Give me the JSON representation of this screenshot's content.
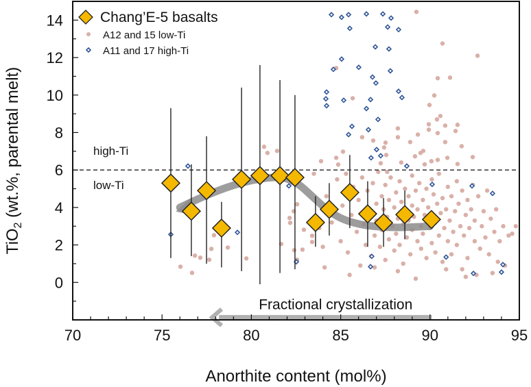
{
  "chart_data": {
    "type": "scatter",
    "xlabel": "Anorthite content (mol%)",
    "ylabel_main": "TiO",
    "ylabel_sub": "2",
    "ylabel_rest": " (wt.%, parental melt)",
    "xlim": [
      70,
      95
    ],
    "ylim": [
      -2,
      15
    ],
    "xticks": [
      "70",
      "75",
      "80",
      "85",
      "90",
      "95"
    ],
    "yticks": [
      "0",
      "2",
      "4",
      "6",
      "8",
      "10",
      "12",
      "14"
    ],
    "grid": false,
    "legend_position": "top-left",
    "threshold_line": {
      "y": 6,
      "style": "dashed",
      "label_above": "high-Ti",
      "label_below": "low-Ti"
    },
    "annotation": {
      "text": "Fractional crystallization",
      "arrow_from_x": 90.1,
      "arrow_to_x": 77.8,
      "arrow_y": -1.5,
      "color": "#b0b0b0"
    },
    "trend_curve": {
      "color": "#8c8c8c",
      "points": [
        [
          76.0,
          4.0
        ],
        [
          77.0,
          4.45
        ],
        [
          78.0,
          4.85
        ],
        [
          79.0,
          5.2
        ],
        [
          80.0,
          5.45
        ],
        [
          81.0,
          5.6
        ],
        [
          81.8,
          5.62
        ],
        [
          82.6,
          5.3
        ],
        [
          83.4,
          4.6
        ],
        [
          84.2,
          3.9
        ],
        [
          85.0,
          3.4
        ],
        [
          86.0,
          3.1
        ],
        [
          87.0,
          2.97
        ],
        [
          88.0,
          2.93
        ],
        [
          89.0,
          2.95
        ],
        [
          90.0,
          3.0
        ]
      ]
    },
    "series": [
      {
        "name": "Chang’E-5 basalts",
        "marker": "diamond",
        "color": "#f5b800",
        "points": [
          {
            "x": 75.49,
            "y": 5.3,
            "ymin": 1.3,
            "ymax": 9.3
          },
          {
            "x": 76.64,
            "y": 3.8,
            "ymin": 1.4,
            "ymax": 6.3
          },
          {
            "x": 77.49,
            "y": 4.9,
            "ymin": 1.0,
            "ymax": 7.8
          },
          {
            "x": 78.33,
            "y": 2.9,
            "ymin": 0.8,
            "ymax": 4.3
          },
          {
            "x": 79.45,
            "y": 5.5,
            "ymin": 0.6,
            "ymax": 10.4
          },
          {
            "x": 80.48,
            "y": 5.7,
            "ymin": -0.1,
            "ymax": 11.6
          },
          {
            "x": 81.6,
            "y": 5.7,
            "ymin": 0.5,
            "ymax": 10.8
          },
          {
            "x": 82.44,
            "y": 5.6,
            "ymin": 0.7,
            "ymax": 10.0
          },
          {
            "x": 83.59,
            "y": 3.2,
            "ymin": 1.9,
            "ymax": 4.6
          },
          {
            "x": 84.36,
            "y": 3.9,
            "ymin": 2.5,
            "ymax": 5.3
          },
          {
            "x": 85.51,
            "y": 4.8,
            "ymin": 2.9,
            "ymax": 6.8
          },
          {
            "x": 86.51,
            "y": 3.66,
            "ymin": 1.9,
            "ymax": 5.4
          },
          {
            "x": 87.4,
            "y": 3.18,
            "ymin": 1.9,
            "ymax": 4.5
          },
          {
            "x": 88.59,
            "y": 3.62,
            "ymin": 2.3,
            "ymax": 4.9
          },
          {
            "x": 90.08,
            "y": 3.36
          }
        ]
      },
      {
        "name": "A12 and 15 low-Ti",
        "marker": "circle",
        "color": "#d9b0a8",
        "points": [
          [
            89.24,
            14.44
          ],
          [
            90.7,
            12.75
          ],
          [
            92.66,
            12.1
          ],
          [
            90.43,
            10.9
          ],
          [
            91.12,
            10.93
          ],
          [
            90.24,
            9.98
          ],
          [
            89.97,
            9.47
          ],
          [
            84.75,
            11.44
          ],
          [
            85.67,
            9.83
          ],
          [
            90.58,
            8.88
          ],
          [
            90.39,
            8.7
          ],
          [
            89.93,
            8.44
          ],
          [
            89.93,
            8.15
          ],
          [
            90.85,
            8.37
          ],
          [
            91.54,
            8.41
          ],
          [
            90.43,
            7.97
          ],
          [
            91.43,
            8.08
          ],
          [
            89.32,
            7.89
          ],
          [
            88.2,
            8.22
          ],
          [
            88.2,
            7.75
          ],
          [
            86.2,
            7.75
          ],
          [
            86.82,
            7.57
          ],
          [
            87.51,
            7.46
          ],
          [
            88.89,
            7.49
          ],
          [
            90.85,
            7.49
          ],
          [
            91.77,
            7.27
          ],
          [
            87.43,
            7.2
          ],
          [
            85.13,
            6.98
          ],
          [
            89.62,
            7.02
          ],
          [
            89.47,
            6.91
          ],
          [
            84.75,
            6.65
          ],
          [
            83.9,
            6.47
          ],
          [
            89.16,
            6.73
          ],
          [
            90.97,
            6.65
          ],
          [
            92.39,
            6.69
          ],
          [
            90.08,
            6.47
          ],
          [
            90.43,
            6.54
          ],
          [
            91.54,
            6.32
          ],
          [
            84.86,
            6.29
          ],
          [
            87.24,
            6.36
          ],
          [
            88.39,
            6.4
          ],
          [
            87.55,
            6.8
          ],
          [
            80.71,
            7.24
          ],
          [
            80.9,
            6.91
          ],
          [
            81.44,
            7.02
          ],
          [
            82.56,
            4.17
          ],
          [
            82.37,
            3.8
          ],
          [
            82.14,
            3.44
          ],
          [
            82.17,
            3.18
          ],
          [
            82.94,
            2.81
          ],
          [
            83.4,
            2.49
          ],
          [
            83.4,
            2.16
          ],
          [
            81.67,
            2.05
          ],
          [
            82.4,
            1.72
          ],
          [
            82.86,
            1.75
          ],
          [
            82.56,
            1.21
          ],
          [
            77.91,
            2.52
          ],
          [
            78.68,
            1.86
          ],
          [
            77.76,
            1.79
          ],
          [
            79.72,
            1.28
          ],
          [
            76.84,
            1.43
          ],
          [
            77.14,
            1.32
          ],
          [
            77.64,
            1.21
          ],
          [
            76.03,
            0.84
          ],
          [
            76.68,
            0.51
          ],
          [
            84.2,
            4.6
          ],
          [
            84.5,
            3.2
          ],
          [
            84.8,
            5.5
          ],
          [
            85.0,
            2.2
          ],
          [
            85.1,
            4.1
          ],
          [
            85.3,
            5.8
          ],
          [
            85.4,
            1.6
          ],
          [
            85.6,
            3.6
          ],
          [
            85.7,
            5.1
          ],
          [
            85.9,
            2.7
          ],
          [
            86.0,
            4.4
          ],
          [
            86.1,
            0.9
          ],
          [
            86.2,
            5.6
          ],
          [
            86.3,
            3.1
          ],
          [
            86.4,
            2.0
          ],
          [
            86.5,
            4.9
          ],
          [
            86.6,
            3.8
          ],
          [
            86.7,
            1.4
          ],
          [
            86.8,
            5.3
          ],
          [
            86.9,
            2.5
          ],
          [
            87.0,
            4.2
          ],
          [
            87.0,
            3.3
          ],
          [
            87.1,
            5.9
          ],
          [
            87.2,
            1.9
          ],
          [
            87.3,
            4.6
          ],
          [
            87.3,
            2.8
          ],
          [
            87.4,
            3.9
          ],
          [
            87.5,
            5.2
          ],
          [
            87.5,
            1.2
          ],
          [
            87.6,
            3.5
          ],
          [
            87.7,
            4.4
          ],
          [
            87.7,
            2.3
          ],
          [
            87.8,
            5.6
          ],
          [
            87.9,
            3.0
          ],
          [
            88.0,
            4.0
          ],
          [
            88.0,
            1.7
          ],
          [
            88.1,
            4.8
          ],
          [
            88.1,
            2.6
          ],
          [
            88.2,
            3.4
          ],
          [
            88.3,
            5.4
          ],
          [
            88.3,
            2.0
          ],
          [
            88.4,
            4.3
          ],
          [
            88.5,
            3.1
          ],
          [
            88.5,
            1.0
          ],
          [
            88.6,
            5.0
          ],
          [
            88.6,
            3.7
          ],
          [
            88.7,
            2.4
          ],
          [
            88.8,
            4.6
          ],
          [
            88.8,
            3.3
          ],
          [
            88.9,
            1.5
          ],
          [
            89.0,
            5.7
          ],
          [
            89.0,
            4.1
          ],
          [
            89.0,
            2.8
          ],
          [
            89.1,
            3.5
          ],
          [
            89.2,
            0.2
          ],
          [
            89.2,
            4.9
          ],
          [
            89.3,
            2.2
          ],
          [
            89.3,
            3.9
          ],
          [
            89.4,
            5.3
          ],
          [
            89.5,
            3.0
          ],
          [
            89.5,
            1.8
          ],
          [
            89.6,
            4.4
          ],
          [
            89.6,
            2.6
          ],
          [
            89.7,
            3.6
          ],
          [
            89.8,
            5.0
          ],
          [
            89.8,
            1.3
          ],
          [
            89.9,
            4.0
          ],
          [
            90.0,
            2.9
          ],
          [
            90.0,
            3.4
          ],
          [
            90.1,
            5.5
          ],
          [
            90.1,
            2.1
          ],
          [
            90.2,
            4.7
          ],
          [
            90.3,
            3.2
          ],
          [
            90.3,
            1.6
          ],
          [
            90.4,
            4.2
          ],
          [
            90.5,
            2.5
          ],
          [
            90.5,
            5.8
          ],
          [
            90.6,
            3.7
          ],
          [
            90.7,
            1.1
          ],
          [
            90.7,
            4.5
          ],
          [
            90.8,
            2.9
          ],
          [
            90.9,
            3.9
          ],
          [
            91.0,
            5.1
          ],
          [
            91.0,
            2.2
          ],
          [
            91.1,
            3.3
          ],
          [
            91.2,
            4.6
          ],
          [
            91.2,
            1.5
          ],
          [
            91.3,
            2.7
          ],
          [
            91.4,
            3.8
          ],
          [
            91.5,
            5.4
          ],
          [
            91.5,
            2.0
          ],
          [
            91.6,
            4.2
          ],
          [
            91.7,
            3.0
          ],
          [
            91.8,
            0.7
          ],
          [
            91.8,
            4.9
          ],
          [
            91.9,
            2.5
          ],
          [
            92.0,
            3.6
          ],
          [
            92.1,
            1.3
          ],
          [
            92.1,
            4.4
          ],
          [
            92.2,
            2.9
          ],
          [
            92.3,
            3.9
          ],
          [
            92.4,
            5.2
          ],
          [
            92.5,
            2.2
          ],
          [
            92.5,
            3.3
          ],
          [
            92.6,
            0.4
          ],
          [
            92.7,
            4.6
          ],
          [
            92.8,
            1.8
          ],
          [
            92.9,
            3.0
          ],
          [
            93.0,
            3.8
          ],
          [
            93.1,
            2.4
          ],
          [
            93.2,
            4.9
          ],
          [
            93.3,
            1.5
          ],
          [
            93.4,
            3.4
          ],
          [
            93.5,
            0.5
          ],
          [
            93.6,
            2.7
          ],
          [
            93.7,
            3.9
          ],
          [
            93.8,
            1.1
          ],
          [
            93.9,
            2.2
          ],
          [
            94.1,
            3.0
          ],
          [
            94.2,
            0.9
          ],
          [
            94.4,
            2.5
          ],
          [
            94.6,
            2.6
          ],
          [
            94.8,
            3.0
          ],
          [
            85.5,
            0.4
          ],
          [
            86.9,
            0.8
          ],
          [
            88.2,
            0.6
          ],
          [
            90.9,
            0.7
          ],
          [
            92.0,
            0.3
          ],
          [
            87.6,
            5.9
          ],
          [
            89.7,
            6.3
          ],
          [
            84.0,
            1.9
          ],
          [
            83.8,
            2.9
          ],
          [
            83.5,
            5.8
          ],
          [
            84.1,
            0.8
          ]
        ]
      },
      {
        "name": "A11 and 17 high-Ti",
        "marker": "small-diamond",
        "color": "#2f5597",
        "points": [
          [
            84.48,
            14.29
          ],
          [
            85.05,
            14.15
          ],
          [
            85.44,
            14.29
          ],
          [
            86.44,
            14.33
          ],
          [
            87.36,
            14.33
          ],
          [
            87.82,
            14.11
          ],
          [
            85.51,
            13.56
          ],
          [
            87.63,
            13.63
          ],
          [
            88.24,
            13.49
          ],
          [
            86.94,
            12.57
          ],
          [
            87.7,
            12.46
          ],
          [
            85.05,
            11.92
          ],
          [
            84.59,
            11.37
          ],
          [
            86.01,
            11.48
          ],
          [
            87.78,
            11.29
          ],
          [
            86.78,
            10.96
          ],
          [
            86.97,
            10.64
          ],
          [
            84.21,
            10.16
          ],
          [
            84.17,
            9.8
          ],
          [
            84.21,
            9.43
          ],
          [
            85.17,
            9.72
          ],
          [
            86.67,
            9.76
          ],
          [
            86.44,
            9.28
          ],
          [
            88.24,
            10.2
          ],
          [
            88.43,
            9.87
          ],
          [
            87.09,
            8.7
          ],
          [
            85.63,
            8.33
          ],
          [
            85.44,
            7.89
          ],
          [
            86.55,
            8.15
          ],
          [
            87.01,
            7.09
          ],
          [
            86.7,
            6.65
          ],
          [
            87.24,
            6.76
          ],
          [
            88.7,
            6.21
          ],
          [
            76.45,
            6.21
          ],
          [
            75.49,
            2.56
          ],
          [
            79.22,
            2.67
          ],
          [
            82.1,
            5.15
          ],
          [
            82.52,
            1.1
          ],
          [
            90.12,
            5.23
          ],
          [
            92.43,
            0.48
          ],
          [
            93.5,
            4.75
          ],
          [
            94.08,
            0.95
          ],
          [
            94.0,
            0.55
          ],
          [
            92.35,
            5.15
          ],
          [
            86.74,
            1.39
          ],
          [
            86.67,
            0.84
          ],
          [
            90.9,
            1.35
          ]
        ]
      }
    ]
  }
}
